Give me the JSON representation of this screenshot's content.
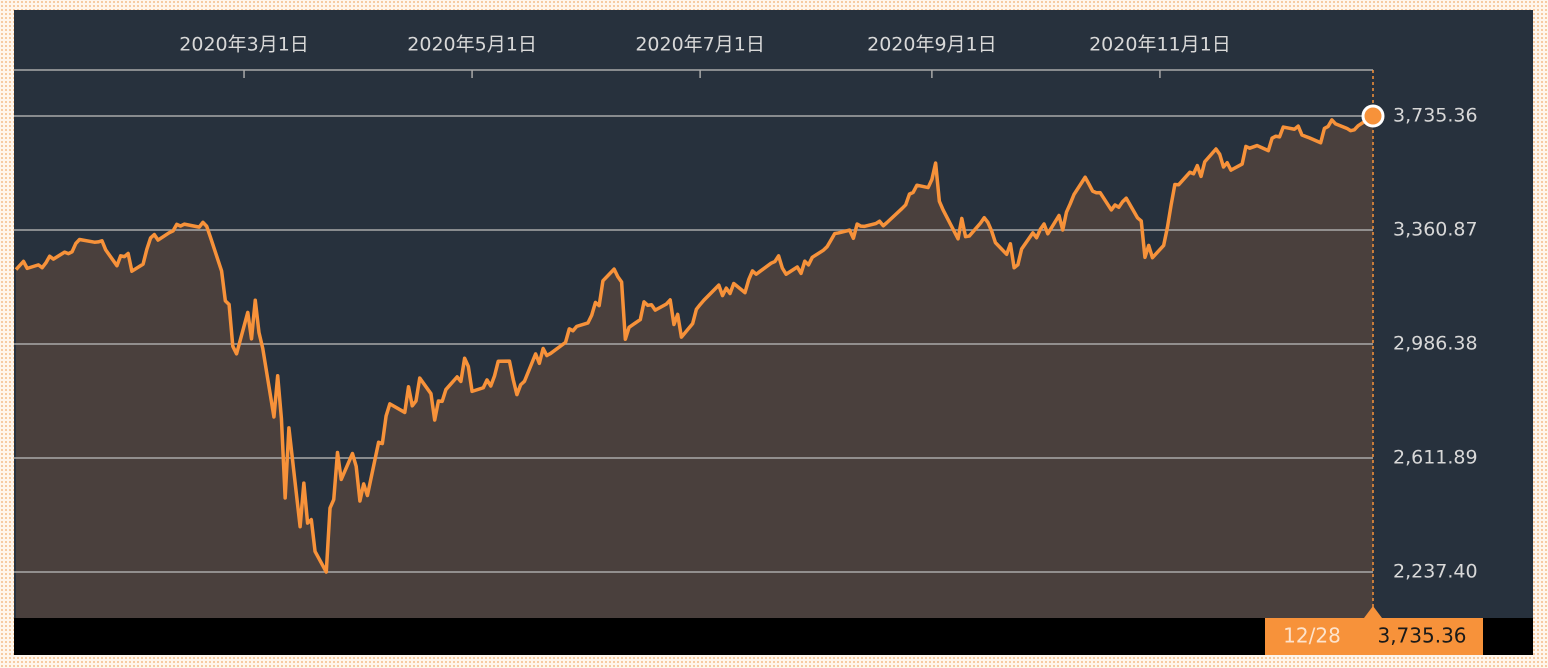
{
  "chart_data": {
    "type": "area-line",
    "color": "#f7923a",
    "fill": "#4a403d",
    "xlim": [
      "2019-12-31",
      "2020-12-28"
    ],
    "xticks": [
      {
        "value": "2020-03-01",
        "label": "2020年3月1日"
      },
      {
        "value": "2020-05-01",
        "label": "2020年5月1日"
      },
      {
        "value": "2020-07-01",
        "label": "2020年7月1日"
      },
      {
        "value": "2020-09-01",
        "label": "2020年9月1日"
      },
      {
        "value": "2020-11-01",
        "label": "2020年11月1日"
      }
    ],
    "ylim": [
      2086.3,
      3886.5
    ],
    "yticks": [
      {
        "value": 2237.4,
        "label": "2,237.40"
      },
      {
        "value": 2611.89,
        "label": "2,611.89"
      },
      {
        "value": 2986.38,
        "label": "2,986.38"
      },
      {
        "value": 3360.87,
        "label": "3,360.87"
      },
      {
        "value": 3735.36,
        "label": "3,735.36"
      }
    ],
    "grid": true,
    "last_badge": {
      "date": "12/28",
      "value": "3,735.36"
    },
    "x": [
      "2019-12-31",
      "2020-01-02",
      "2020-01-03",
      "2020-01-06",
      "2020-01-07",
      "2020-01-08",
      "2020-01-09",
      "2020-01-10",
      "2020-01-13",
      "2020-01-14",
      "2020-01-15",
      "2020-01-16",
      "2020-01-17",
      "2020-01-21",
      "2020-01-22",
      "2020-01-23",
      "2020-01-24",
      "2020-01-27",
      "2020-01-28",
      "2020-01-29",
      "2020-01-30",
      "2020-01-31",
      "2020-02-03",
      "2020-02-04",
      "2020-02-05",
      "2020-02-06",
      "2020-02-07",
      "2020-02-10",
      "2020-02-11",
      "2020-02-12",
      "2020-02-13",
      "2020-02-14",
      "2020-02-18",
      "2020-02-19",
      "2020-02-20",
      "2020-02-21",
      "2020-02-24",
      "2020-02-25",
      "2020-02-26",
      "2020-02-27",
      "2020-02-28",
      "2020-03-02",
      "2020-03-03",
      "2020-03-04",
      "2020-03-05",
      "2020-03-06",
      "2020-03-09",
      "2020-03-10",
      "2020-03-11",
      "2020-03-12",
      "2020-03-13",
      "2020-03-16",
      "2020-03-17",
      "2020-03-18",
      "2020-03-19",
      "2020-03-20",
      "2020-03-23",
      "2020-03-24",
      "2020-03-25",
      "2020-03-26",
      "2020-03-27",
      "2020-03-30",
      "2020-03-31",
      "2020-04-01",
      "2020-04-02",
      "2020-04-03",
      "2020-04-06",
      "2020-04-07",
      "2020-04-08",
      "2020-04-09",
      "2020-04-13",
      "2020-04-14",
      "2020-04-15",
      "2020-04-16",
      "2020-04-17",
      "2020-04-20",
      "2020-04-21",
      "2020-04-22",
      "2020-04-23",
      "2020-04-24",
      "2020-04-27",
      "2020-04-28",
      "2020-04-29",
      "2020-04-30",
      "2020-05-01",
      "2020-05-04",
      "2020-05-05",
      "2020-05-06",
      "2020-05-07",
      "2020-05-08",
      "2020-05-11",
      "2020-05-12",
      "2020-05-13",
      "2020-05-14",
      "2020-05-15",
      "2020-05-18",
      "2020-05-19",
      "2020-05-20",
      "2020-05-21",
      "2020-05-22",
      "2020-05-26",
      "2020-05-27",
      "2020-05-28",
      "2020-05-29",
      "2020-06-01",
      "2020-06-02",
      "2020-06-03",
      "2020-06-04",
      "2020-06-05",
      "2020-06-08",
      "2020-06-09",
      "2020-06-10",
      "2020-06-11",
      "2020-06-12",
      "2020-06-15",
      "2020-06-16",
      "2020-06-17",
      "2020-06-18",
      "2020-06-19",
      "2020-06-22",
      "2020-06-23",
      "2020-06-24",
      "2020-06-25",
      "2020-06-26",
      "2020-06-29",
      "2020-06-30",
      "2020-07-01",
      "2020-07-02",
      "2020-07-06",
      "2020-07-07",
      "2020-07-08",
      "2020-07-09",
      "2020-07-10",
      "2020-07-13",
      "2020-07-14",
      "2020-07-15",
      "2020-07-16",
      "2020-07-17",
      "2020-07-20",
      "2020-07-21",
      "2020-07-22",
      "2020-07-23",
      "2020-07-24",
      "2020-07-27",
      "2020-07-28",
      "2020-07-29",
      "2020-07-30",
      "2020-07-31",
      "2020-08-03",
      "2020-08-04",
      "2020-08-05",
      "2020-08-06",
      "2020-08-07",
      "2020-08-10",
      "2020-08-11",
      "2020-08-12",
      "2020-08-13",
      "2020-08-14",
      "2020-08-17",
      "2020-08-18",
      "2020-08-19",
      "2020-08-20",
      "2020-08-21",
      "2020-08-24",
      "2020-08-25",
      "2020-08-26",
      "2020-08-27",
      "2020-08-28",
      "2020-08-31",
      "2020-09-01",
      "2020-09-02",
      "2020-09-03",
      "2020-09-04",
      "2020-09-08",
      "2020-09-09",
      "2020-09-10",
      "2020-09-11",
      "2020-09-14",
      "2020-09-15",
      "2020-09-16",
      "2020-09-17",
      "2020-09-18",
      "2020-09-21",
      "2020-09-22",
      "2020-09-23",
      "2020-09-24",
      "2020-09-25",
      "2020-09-28",
      "2020-09-29",
      "2020-09-30",
      "2020-10-01",
      "2020-10-02",
      "2020-10-05",
      "2020-10-06",
      "2020-10-07",
      "2020-10-08",
      "2020-10-09",
      "2020-10-12",
      "2020-10-13",
      "2020-10-14",
      "2020-10-15",
      "2020-10-16",
      "2020-10-19",
      "2020-10-20",
      "2020-10-21",
      "2020-10-22",
      "2020-10-23",
      "2020-10-26",
      "2020-10-27",
      "2020-10-28",
      "2020-10-29",
      "2020-10-30",
      "2020-11-02",
      "2020-11-03",
      "2020-11-04",
      "2020-11-05",
      "2020-11-06",
      "2020-11-09",
      "2020-11-10",
      "2020-11-11",
      "2020-11-12",
      "2020-11-13",
      "2020-11-16",
      "2020-11-17",
      "2020-11-18",
      "2020-11-19",
      "2020-11-20",
      "2020-11-23",
      "2020-11-24",
      "2020-11-25",
      "2020-11-27",
      "2020-11-30",
      "2020-12-01",
      "2020-12-02",
      "2020-12-03",
      "2020-12-04",
      "2020-12-07",
      "2020-12-08",
      "2020-12-09",
      "2020-12-10",
      "2020-12-11",
      "2020-12-14",
      "2020-12-15",
      "2020-12-16",
      "2020-12-17",
      "2020-12-18",
      "2020-12-21",
      "2020-12-22",
      "2020-12-23",
      "2020-12-24",
      "2020-12-28"
    ],
    "values": [
      3230.78,
      3257.85,
      3234.85,
      3246.28,
      3237.18,
      3253.05,
      3274.7,
      3265.35,
      3288.13,
      3283.15,
      3289.29,
      3316.81,
      3329.62,
      3320.79,
      3321.75,
      3325.54,
      3295.47,
      3243.63,
      3276.24,
      3273.4,
      3283.66,
      3225.52,
      3248.92,
      3297.59,
      3334.69,
      3345.78,
      3327.71,
      3352.09,
      3357.75,
      3379.45,
      3373.94,
      3380.16,
      3370.29,
      3386.15,
      3373.23,
      3337.75,
      3225.89,
      3128.21,
      3116.39,
      2978.76,
      2954.22,
      3090.23,
      3003.37,
      3130.12,
      3023.94,
      2972.37,
      2746.56,
      2882.23,
      2741.38,
      2480.64,
      2711.02,
      2386.13,
      2529.19,
      2398.1,
      2409.39,
      2304.92,
      2237.4,
      2447.33,
      2475.56,
      2630.07,
      2541.47,
      2626.65,
      2584.59,
      2470.5,
      2526.9,
      2488.65,
      2663.68,
      2659.41,
      2749.98,
      2789.82,
      2761.63,
      2846.06,
      2783.36,
      2799.55,
      2874.56,
      2823.16,
      2736.56,
      2799.31,
      2797.8,
      2836.74,
      2878.48,
      2863.39,
      2939.51,
      2912.43,
      2830.71,
      2842.74,
      2868.44,
      2848.42,
      2881.19,
      2929.8,
      2930.32,
      2870.12,
      2820.0,
      2852.5,
      2863.7,
      2953.91,
      2922.94,
      2971.61,
      2948.51,
      2955.45,
      2991.77,
      3036.13,
      3029.73,
      3044.31,
      3055.73,
      3080.82,
      3122.87,
      3112.35,
      3193.93,
      3232.39,
      3207.18,
      3190.14,
      3002.1,
      3041.31,
      3066.59,
      3124.74,
      3113.49,
      3115.34,
      3097.74,
      3117.86,
      3131.29,
      3050.33,
      3083.76,
      3009.05,
      3053.24,
      3100.29,
      3115.86,
      3130.01,
      3179.72,
      3145.32,
      3169.94,
      3152.05,
      3185.04,
      3155.22,
      3197.52,
      3226.56,
      3215.57,
      3224.73,
      3251.84,
      3257.3,
      3276.02,
      3235.66,
      3215.63,
      3239.41,
      3218.44,
      3258.44,
      3246.22,
      3271.12,
      3294.61,
      3306.51,
      3327.77,
      3349.16,
      3351.28,
      3360.47,
      3333.69,
      3380.35,
      3373.43,
      3372.85,
      3381.99,
      3389.78,
      3374.85,
      3385.51,
      3397.16,
      3431.28,
      3443.62,
      3478.73,
      3484.55,
      3508.01,
      3500.31,
      3526.65,
      3580.84,
      3455.06,
      3426.96,
      3331.84,
      3398.96,
      3339.19,
      3340.97,
      3383.54,
      3401.2,
      3385.49,
      3357.01,
      3319.47,
      3281.06,
      3315.57,
      3236.92,
      3246.59,
      3298.46,
      3351.6,
      3335.47,
      3363.0,
      3380.8,
      3348.42,
      3408.6,
      3360.97,
      3419.44,
      3446.83,
      3477.14,
      3534.22,
      3511.93,
      3488.67,
      3483.34,
      3483.81,
      3426.92,
      3443.12,
      3435.56,
      3453.49,
      3465.39,
      3400.97,
      3390.68,
      3271.03,
      3310.11,
      3269.96,
      3310.24,
      3369.16,
      3443.44,
      3510.45,
      3509.44,
      3550.5,
      3545.53,
      3572.66,
      3537.01,
      3585.15,
      3626.91,
      3609.53,
      3567.79,
      3581.87,
      3557.54,
      3577.59,
      3635.41,
      3629.65,
      3638.35,
      3621.63,
      3662.45,
      3669.01,
      3666.72,
      3699.12,
      3691.96,
      3702.25,
      3672.82,
      3668.1,
      3663.46,
      3647.49,
      3694.62,
      3701.17,
      3722.48,
      3709.41,
      3694.92,
      3687.26,
      3690.01,
      3703.06,
      3735.36
    ]
  }
}
